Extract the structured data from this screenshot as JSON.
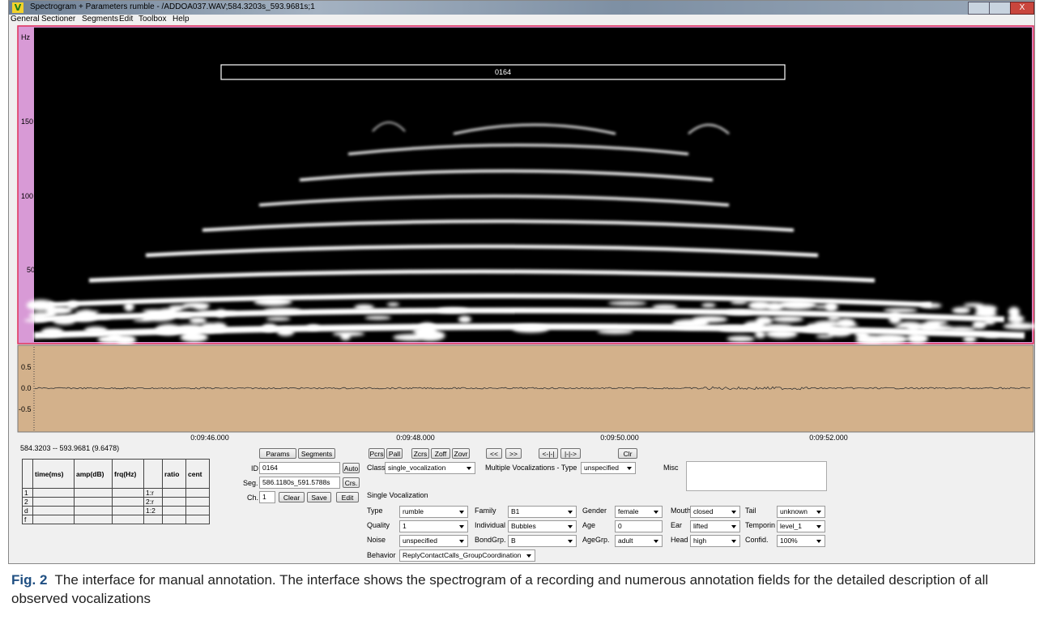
{
  "window": {
    "title": "Spectrogram + Parameters rumble - /ADDOA037.WAV;584.3203s_593.9681s;1"
  },
  "menu": [
    "General",
    "Sectioner",
    "Segments",
    "Edit",
    "Toolbox",
    "Help"
  ],
  "spectrogram": {
    "unit": "Hz",
    "ticks": [
      "150",
      "100",
      "50"
    ],
    "label": "0164"
  },
  "waveform": {
    "ticks": [
      "0.5",
      "0.0",
      "-0.5"
    ],
    "time_ticks": [
      "0:09:46.000",
      "0:09:48.000",
      "0:09:50.000",
      "0:09:52.000"
    ]
  },
  "panel": {
    "range": "584.3203 -- 593.9681 (9.6478)",
    "table": {
      "headers": [
        "time(ms)",
        "amp(dB)",
        "frq(Hz)",
        "ratio",
        "cent"
      ],
      "rows": [
        "1",
        "2",
        "d",
        "f"
      ],
      "ratios": [
        "1:r",
        "2:r",
        "1:2"
      ]
    },
    "buttons": [
      "Params",
      "Segments",
      "Pcrs",
      "Pall",
      "Zcrs",
      "Zoff",
      "Zovr",
      "<<",
      ">>",
      "<-|-|",
      "|-|->",
      "Clr"
    ],
    "id": {
      "label": "ID",
      "value": "0164",
      "button": "Auto"
    },
    "seg": {
      "label": "Seg.",
      "value": "586.1180s_591.5788s",
      "button": "Crs."
    },
    "channel": {
      "label": "Ch.",
      "value": "1",
      "buttons": [
        "Clear",
        "Save",
        "Edit"
      ]
    },
    "class": {
      "label": "Class",
      "value": "single_vocalization"
    },
    "multiple": {
      "label": "Multiple Vocalizations - Type",
      "value": "unspecified"
    },
    "misc": {
      "label": "Misc"
    },
    "single_heading": "Single Vocalization",
    "fields": [
      {
        "label": "Type",
        "value": "rumble"
      },
      {
        "label": "Quality",
        "value": "1"
      },
      {
        "label": "Noise",
        "value": "unspecified"
      },
      {
        "label": "Family",
        "value": "B1"
      },
      {
        "label": "Individual",
        "value": "Bubbles"
      },
      {
        "label": "BondGrp.",
        "value": "B"
      },
      {
        "label": "Gender",
        "value": "female"
      },
      {
        "label": "Age",
        "value": "0"
      },
      {
        "label": "AgeGrp.",
        "value": "adult"
      },
      {
        "label": "Mouth",
        "value": "closed"
      },
      {
        "label": "Ear",
        "value": "lifted"
      },
      {
        "label": "Head",
        "value": "high"
      },
      {
        "label": "Tail",
        "value": "unknown"
      },
      {
        "label": "Temporin",
        "value": "level_1"
      },
      {
        "label": "Confid.",
        "value": "100%"
      }
    ],
    "behavior": {
      "label": "Behavior",
      "value": "ReplyContactCalls_GroupCoordination"
    }
  },
  "caption": {
    "label": "Fig. 2",
    "text": "The interface for manual annotation. The interface shows the spectrogram of a recording and numerous annotation fields for the detailed description of all observed vocalizations"
  }
}
